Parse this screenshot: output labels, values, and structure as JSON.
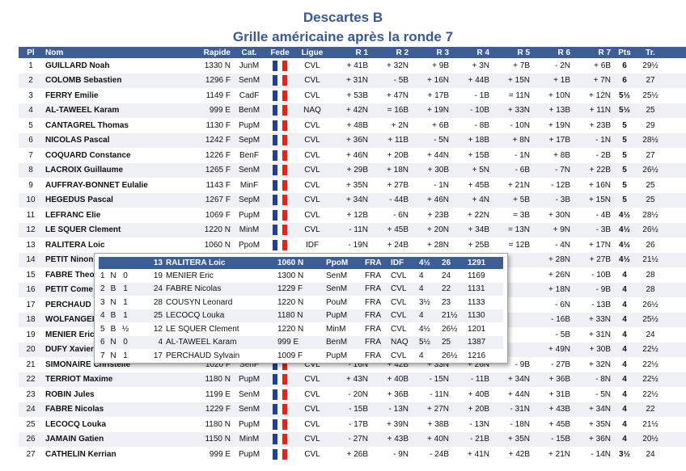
{
  "title": "Descartes B",
  "subtitle": "Grille américaine après la ronde 7",
  "columns": [
    "Pl",
    "Nom",
    "Rapide",
    "Cat.",
    "Fede",
    "Ligue",
    "R 1",
    "R 2",
    "R 3",
    "R 4",
    "R 5",
    "R 6",
    "R 7",
    "Pts",
    "Tr.",
    "Perf"
  ],
  "rows": [
    [
      "1",
      "GUILLARD Noah",
      "1330 N",
      "JunM",
      "fr",
      "CVL",
      "+ 41B",
      "+ 32N",
      "+ 9B",
      "+ 3N",
      "+ 7B",
      "- 2N",
      "+ 6B",
      "6",
      "29½",
      "1495"
    ],
    [
      "2",
      "COLOMB Sebastien",
      "1296 F",
      "SenM",
      "fr",
      "CVL",
      "+ 31N",
      "- 5B",
      "+ 16N",
      "+ 44B",
      "+ 15N",
      "+ 1B",
      "+ 7N",
      "6",
      "27",
      "1480"
    ],
    [
      "3",
      "FERRY Emilie",
      "1149 F",
      "CadF",
      "fr",
      "CVL",
      "+ 53B",
      "+ 47N",
      "+ 17B",
      "- 1B",
      "= 11N",
      "+ 10N",
      "+ 12N",
      "5½",
      "25½",
      "1318"
    ],
    [
      "4",
      "AL-TAWEEL Karam",
      "999 E",
      "BenM",
      "fr",
      "NAQ",
      "+ 42N",
      "= 16B",
      "+ 19N",
      "- 10B",
      "+ 33N",
      "+ 13B",
      "+ 11N",
      "5½",
      "25",
      "1387"
    ],
    [
      "5",
      "CANTAGREL Thomas",
      "1130 F",
      "PupM",
      "fr",
      "CVL",
      "+ 48B",
      "+ 2N",
      "+ 6B",
      "- 8B",
      "- 10N",
      "+ 19N",
      "+ 23B",
      "5",
      "29",
      "1348"
    ],
    [
      "6",
      "NICOLAS Pascal",
      "1242 F",
      "SepM",
      "fr",
      "CVL",
      "+ 36N",
      "+ 11B",
      "- 5N",
      "+ 18B",
      "+ 8N",
      "+ 17B",
      "- 1N",
      "5",
      "28½",
      "1306"
    ],
    [
      "7",
      "COQUARD Constance",
      "1226 F",
      "BenF",
      "fr",
      "CVL",
      "+ 46N",
      "+ 20B",
      "+ 44N",
      "+ 15B",
      "- 1N",
      "+ 8B",
      "- 2B",
      "5",
      "27",
      "1335"
    ],
    [
      "8",
      "LACROIX Guillaume",
      "1265 F",
      "SenM",
      "fr",
      "CVL",
      "+ 29B",
      "+ 18N",
      "+ 30B",
      "+ 5N",
      "- 6B",
      "- 7N",
      "+ 22B",
      "5",
      "26½",
      "1323"
    ],
    [
      "9",
      "AUFFRAY-BONNET Eulalie",
      "1143 F",
      "MinF",
      "fr",
      "CVL",
      "+ 35N",
      "+ 27B",
      "- 1N",
      "+ 45B",
      "+ 21N",
      "- 12B",
      "+ 16N",
      "5",
      "25",
      "1325"
    ],
    [
      "10",
      "HEGEDUS Pascal",
      "1267 F",
      "SepM",
      "fr",
      "CVL",
      "+ 34N",
      "- 44B",
      "+ 46N",
      "+ 4N",
      "+ 5B",
      "- 3B",
      "+ 15N",
      "5",
      "25",
      "1278"
    ],
    [
      "11",
      "LEFRANC Elie",
      "1069 F",
      "PupM",
      "fr",
      "CVL",
      "+ 12B",
      "- 6N",
      "+ 23B",
      "+ 22N",
      "= 3B",
      "+ 30N",
      "- 4B",
      "4½",
      "28½",
      "1278"
    ],
    [
      "12",
      "LE SQUER Clement",
      "1220 N",
      "MinM",
      "fr",
      "CVL",
      "- 11N",
      "+ 45B",
      "+ 20N",
      "+ 34B",
      "= 13N",
      "+ 9N",
      "- 3B",
      "4½",
      "26½",
      "1201"
    ],
    [
      "13",
      "RALITERA Loic",
      "1060 N",
      "PpoM",
      "fr",
      "IDF",
      "- 19N",
      "+ 24B",
      "+ 28N",
      "+ 25B",
      "= 12B",
      "- 4N",
      "+ 17N",
      "4½",
      "26",
      "1291"
    ],
    [
      "14",
      "PETIT Ninon",
      "",
      "",
      "fr",
      "",
      "",
      "",
      "",
      "",
      "",
      "+ 28N",
      "+ 27B",
      "4½",
      "21½",
      "1219"
    ],
    [
      "15",
      "FABRE Theo",
      "",
      "",
      "fr",
      "",
      "",
      "",
      "",
      "",
      "",
      "+ 26N",
      "- 10B",
      "4",
      "28",
      "1275"
    ],
    [
      "16",
      "PETIT Come",
      "",
      "",
      "fr",
      "",
      "",
      "",
      "",
      "",
      "",
      "+ 18N",
      "- 9B",
      "4",
      "28",
      "1199"
    ],
    [
      "17",
      "PERCHAUD",
      "",
      "",
      "fr",
      "",
      "",
      "",
      "",
      "",
      "",
      "- 6N",
      "- 13B",
      "4",
      "26½",
      "1216"
    ],
    [
      "18",
      "WOLFANGEL",
      "",
      "",
      "fr",
      "",
      "",
      "",
      "",
      "",
      "",
      "- 16B",
      "+ 33N",
      "4",
      "25½",
      "1224"
    ],
    [
      "19",
      "MENIER Eric",
      "",
      "",
      "fr",
      "",
      "",
      "",
      "",
      "",
      "",
      "- 5B",
      "+ 31N",
      "4",
      "24",
      "1169"
    ],
    [
      "20",
      "DUFY Xavier",
      "",
      "",
      "fr",
      "",
      "",
      "",
      "",
      "",
      "",
      "+ 49N",
      "+ 30B",
      "4",
      "22½",
      "1200"
    ],
    [
      "21",
      "SIMONAIRE Christelle",
      "1020 F",
      "SenF",
      "fr",
      "CVL",
      "- 16N",
      "+ 42B",
      "+ 33N",
      "+ 26N",
      "- 9B",
      "- 27B",
      "+ 32N",
      "4",
      "22½",
      "1197"
    ],
    [
      "22",
      "TERRIOT Maxime",
      "1180 N",
      "PupM",
      "fr",
      "CVL",
      "+ 43N",
      "+ 40B",
      "- 15N",
      "- 11B",
      "+ 34N",
      "+ 36B",
      "- 8N",
      "4",
      "22½",
      "1140"
    ],
    [
      "23",
      "ROBIN Jules",
      "1199 E",
      "SenM",
      "fr",
      "CVL",
      "- 20N",
      "+ 36B",
      "- 11N",
      "+ 40B",
      "+ 44N",
      "+ 31B",
      "- 5N",
      "4",
      "22½",
      "1133"
    ],
    [
      "24",
      "FABRE Nicolas",
      "1229 F",
      "SenM",
      "fr",
      "CVL",
      "- 15B",
      "- 13N",
      "+ 27N",
      "+ 20B",
      "- 31N",
      "+ 43B",
      "+ 34N",
      "4",
      "22",
      "1131"
    ],
    [
      "25",
      "LECOCQ Louka",
      "1180 N",
      "PupM",
      "fr",
      "CVL",
      "- 17B",
      "+ 39N",
      "+ 38B",
      "- 13N",
      "- 18N",
      "+ 45B",
      "+ 35N",
      "4",
      "21½",
      "1130"
    ],
    [
      "26",
      "JAMAIN Gatien",
      "1150 N",
      "MinM",
      "fr",
      "CVL",
      "- 27N",
      "+ 43B",
      "+ 40N",
      "- 21B",
      "+ 35N",
      "- 15B",
      "+ 36N",
      "4",
      "20½",
      "1117"
    ],
    [
      "27",
      "CATHELIN Kerrian",
      "999 E",
      "PupM",
      "fr",
      "CVL",
      "+ 26B",
      "- 9N",
      "- 24B",
      "+ 41N",
      "+ 42B",
      "+ 21N",
      "- 14N",
      "3½",
      "24",
      "1095"
    ]
  ],
  "popup": {
    "header": [
      "",
      "",
      "",
      "13",
      "RALITERA Loic",
      "1060 N",
      "PpoM",
      "FRA",
      "IDF",
      "4½",
      "26",
      "1291"
    ],
    "rows": [
      [
        "1",
        "N",
        "0",
        "19",
        "MENIER Eric",
        "1300 N",
        "SenM",
        "FRA",
        "CVL",
        "4",
        "24",
        "1169"
      ],
      [
        "2",
        "B",
        "1",
        "24",
        "FABRE Nicolas",
        "1229 F",
        "SenM",
        "FRA",
        "CVL",
        "4",
        "22",
        "1131"
      ],
      [
        "3",
        "N",
        "1",
        "28",
        "COUSYN Leonard",
        "1220 N",
        "PouM",
        "FRA",
        "CVL",
        "3½",
        "23",
        "1133"
      ],
      [
        "4",
        "B",
        "1",
        "25",
        "LECOCQ Louka",
        "1180 N",
        "PupM",
        "FRA",
        "CVL",
        "4",
        "21½",
        "1130"
      ],
      [
        "5",
        "B",
        "½",
        "12",
        "LE SQUER Clement",
        "1220 N",
        "MinM",
        "FRA",
        "CVL",
        "4½",
        "26½",
        "1201"
      ],
      [
        "6",
        "N",
        "0",
        "4",
        "AL-TAWEEL Karam",
        "999 E",
        "BenM",
        "FRA",
        "NAQ",
        "5½",
        "25",
        "1387"
      ],
      [
        "7",
        "N",
        "1",
        "17",
        "PERCHAUD Sylvain",
        "1009 F",
        "PupM",
        "FRA",
        "CVL",
        "4",
        "26½",
        "1216"
      ]
    ]
  }
}
